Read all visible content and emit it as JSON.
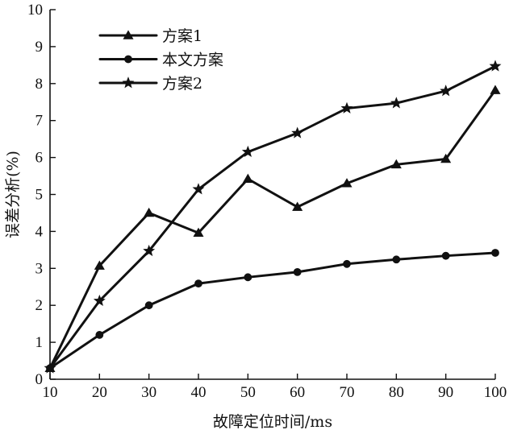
{
  "chart_data": {
    "type": "line",
    "title": "",
    "xlabel": "故障定位时间/ms",
    "ylabel": "误差分析(%)",
    "x": [
      10,
      20,
      30,
      40,
      50,
      60,
      70,
      80,
      90,
      100
    ],
    "xlim": [
      10,
      100
    ],
    "ylim": [
      0,
      10
    ],
    "x_ticks": [
      "10",
      "20",
      "30",
      "40",
      "50",
      "60",
      "70",
      "80",
      "90",
      "100"
    ],
    "y_ticks": [
      "0",
      "1",
      "2",
      "3",
      "4",
      "5",
      "6",
      "7",
      "8",
      "9",
      "10"
    ],
    "grid": false,
    "legend_position": "top-left",
    "series": [
      {
        "name": "方案1",
        "marker": "triangle",
        "color": "#111111",
        "values": [
          0.3,
          3.07,
          4.5,
          3.96,
          5.42,
          4.66,
          5.3,
          5.81,
          5.96,
          7.82
        ]
      },
      {
        "name": "本文方案",
        "marker": "circle",
        "color": "#111111",
        "values": [
          0.3,
          1.2,
          2.0,
          2.59,
          2.76,
          2.9,
          3.12,
          3.24,
          3.34,
          3.42
        ]
      },
      {
        "name": "方案2",
        "marker": "star",
        "color": "#111111",
        "values": [
          0.3,
          2.12,
          3.47,
          5.14,
          6.15,
          6.66,
          7.33,
          7.47,
          7.8,
          8.47
        ]
      }
    ]
  }
}
